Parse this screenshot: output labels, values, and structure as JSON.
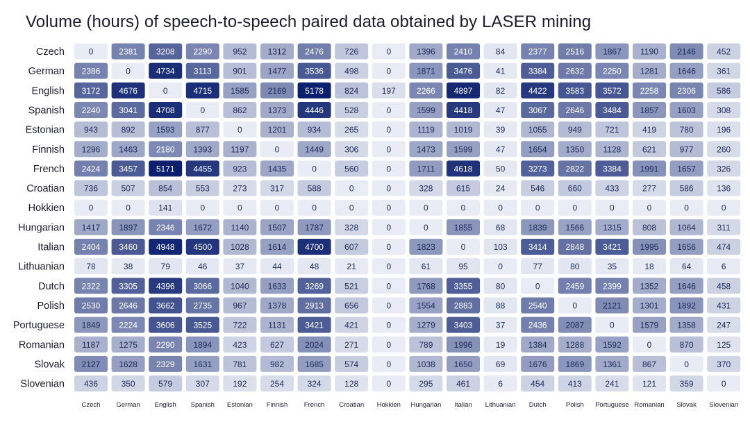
{
  "chart_data": {
    "type": "heatmap",
    "title": "Volume (hours) of speech-to-speech paired data obtained by LASER mining",
    "rows": [
      "Czech",
      "German",
      "English",
      "Spanish",
      "Estonian",
      "Finnish",
      "French",
      "Croatian",
      "Hokkien",
      "Hungarian",
      "Italian",
      "Lithuanian",
      "Dutch",
      "Polish",
      "Portuguese",
      "Romanian",
      "Slovak",
      "Slovenian"
    ],
    "columns": [
      "Czech",
      "German",
      "English",
      "Spanish",
      "Estonian",
      "Finnish",
      "French",
      "Croatian",
      "Hokkien",
      "Hungarian",
      "Italian",
      "Lithuanian",
      "Dutch",
      "Polish",
      "Portuguese",
      "Romanian",
      "Slovak",
      "Slovenian"
    ],
    "values": [
      [
        0,
        2381,
        3208,
        2290,
        952,
        1312,
        2476,
        726,
        0,
        1396,
        2410,
        84,
        2377,
        2516,
        1867,
        1190,
        2146,
        452
      ],
      [
        2386,
        0,
        4734,
        3113,
        901,
        1477,
        3536,
        498,
        0,
        1871,
        3476,
        41,
        3384,
        2632,
        2250,
        1281,
        1646,
        361
      ],
      [
        3172,
        4676,
        0,
        4715,
        1585,
        2169,
        5178,
        824,
        197,
        2266,
        4897,
        82,
        4422,
        3583,
        3572,
        2258,
        2306,
        586
      ],
      [
        2240,
        3041,
        4708,
        0,
        862,
        1373,
        4446,
        528,
        0,
        1599,
        4418,
        47,
        3067,
        2646,
        3484,
        1857,
        1603,
        308
      ],
      [
        943,
        892,
        1593,
        877,
        0,
        1201,
        934,
        265,
        0,
        1119,
        1019,
        39,
        1055,
        949,
        721,
        419,
        780,
        196
      ],
      [
        1296,
        1463,
        2180,
        1393,
        1197,
        0,
        1449,
        306,
        0,
        1473,
        1599,
        47,
        1654,
        1350,
        1128,
        621,
        977,
        260
      ],
      [
        2424,
        3457,
        5171,
        4455,
        923,
        1435,
        0,
        560,
        0,
        1711,
        4618,
        50,
        3273,
        2822,
        3384,
        1991,
        1657,
        326
      ],
      [
        736,
        507,
        854,
        553,
        273,
        317,
        588,
        0,
        0,
        328,
        615,
        24,
        546,
        660,
        433,
        277,
        586,
        136
      ],
      [
        0,
        0,
        141,
        0,
        0,
        0,
        0,
        0,
        0,
        0,
        0,
        0,
        0,
        0,
        0,
        0,
        0,
        0
      ],
      [
        1417,
        1897,
        2346,
        1672,
        1140,
        1507,
        1787,
        328,
        0,
        0,
        1855,
        68,
        1839,
        1566,
        1315,
        808,
        1064,
        311
      ],
      [
        2404,
        3460,
        4948,
        4500,
        1028,
        1614,
        4700,
        607,
        0,
        1823,
        0,
        103,
        3414,
        2848,
        3421,
        1995,
        1656,
        474
      ],
      [
        78,
        38,
        79,
        46,
        37,
        44,
        48,
        21,
        0,
        61,
        95,
        0,
        77,
        80,
        35,
        18,
        64,
        6
      ],
      [
        2322,
        3305,
        4396,
        3066,
        1040,
        1633,
        3269,
        521,
        0,
        1768,
        3355,
        80,
        0,
        2459,
        2399,
        1352,
        1646,
        458
      ],
      [
        2530,
        2646,
        3662,
        2735,
        967,
        1378,
        2913,
        656,
        0,
        1554,
        2883,
        88,
        2540,
        0,
        2121,
        1301,
        1892,
        431
      ],
      [
        1849,
        2224,
        3606,
        3525,
        722,
        1131,
        3421,
        421,
        0,
        1279,
        3403,
        37,
        2436,
        2087,
        0,
        1579,
        1358,
        247
      ],
      [
        1187,
        1275,
        2290,
        1894,
        423,
        627,
        2024,
        271,
        0,
        789,
        1996,
        19,
        1384,
        1288,
        1592,
        0,
        870,
        125
      ],
      [
        2127,
        1628,
        2329,
        1631,
        781,
        982,
        1685,
        574,
        0,
        1038,
        1650,
        69,
        1676,
        1869,
        1361,
        867,
        0,
        370
      ],
      [
        436,
        350,
        579,
        307,
        192,
        254,
        324,
        128,
        0,
        295,
        461,
        6,
        454,
        413,
        241,
        121,
        359,
        0
      ]
    ],
    "color_scale": {
      "min": 0,
      "max": 5178,
      "low": "#e9ecf4",
      "high": "#0a1f6e"
    },
    "text_colors": {
      "dark": "#1c2b5a",
      "light": "#ffffff"
    },
    "legend": "none"
  }
}
